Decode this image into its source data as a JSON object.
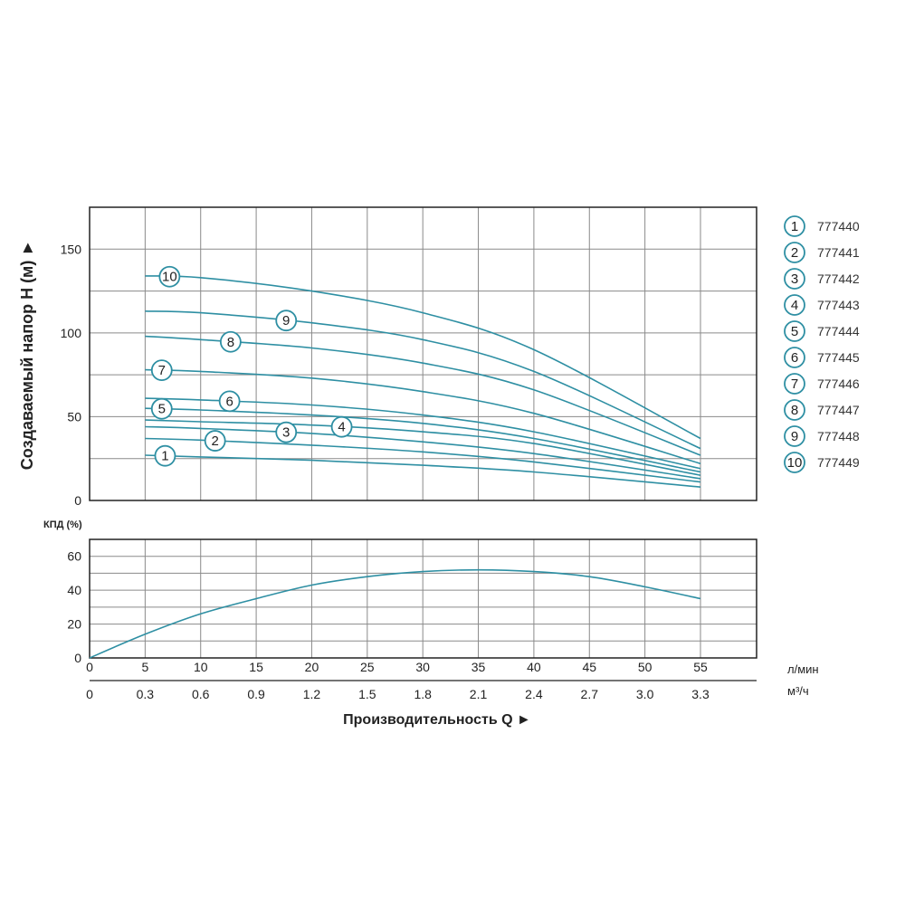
{
  "chart_data": [
    {
      "type": "line",
      "ylabel": "Создаваемый напор H (м) ►",
      "ylim": [
        0,
        175
      ],
      "yticks": [
        0,
        50,
        100,
        150
      ],
      "xlim": [
        0,
        60
      ],
      "grid": true,
      "legend_position": "right",
      "series": [
        {
          "marker": "1",
          "name": "777440",
          "x": [
            5,
            10,
            20,
            30,
            40,
            55
          ],
          "y": [
            27,
            26,
            24,
            21,
            17,
            8
          ]
        },
        {
          "marker": "2",
          "name": "777441",
          "x": [
            5,
            10,
            20,
            30,
            40,
            55
          ],
          "y": [
            37,
            36,
            33,
            29,
            23,
            11
          ]
        },
        {
          "marker": "3",
          "name": "777442",
          "x": [
            5,
            10,
            20,
            30,
            40,
            55
          ],
          "y": [
            44,
            43,
            40,
            35,
            28,
            13
          ]
        },
        {
          "marker": "4",
          "name": "777443",
          "x": [
            5,
            10,
            20,
            30,
            40,
            55
          ],
          "y": [
            48,
            47,
            45,
            41,
            34,
            15
          ]
        },
        {
          "marker": "5",
          "name": "777444",
          "x": [
            5,
            10,
            20,
            30,
            40,
            55
          ],
          "y": [
            55,
            54,
            51,
            46,
            37,
            17
          ]
        },
        {
          "marker": "6",
          "name": "777445",
          "x": [
            5,
            10,
            20,
            30,
            40,
            55
          ],
          "y": [
            61,
            60,
            57,
            51,
            41,
            19
          ]
        },
        {
          "marker": "7",
          "name": "777446",
          "x": [
            5,
            10,
            20,
            30,
            40,
            55
          ],
          "y": [
            78,
            77,
            73,
            65,
            52,
            22
          ]
        },
        {
          "marker": "8",
          "name": "777447",
          "x": [
            5,
            10,
            20,
            30,
            40,
            55
          ],
          "y": [
            98,
            96,
            91,
            82,
            66,
            27
          ]
        },
        {
          "marker": "9",
          "name": "777448",
          "x": [
            5,
            10,
            20,
            30,
            40,
            55
          ],
          "y": [
            113,
            112,
            106,
            96,
            77,
            31
          ]
        },
        {
          "marker": "10",
          "name": "777449",
          "x": [
            5,
            10,
            20,
            30,
            40,
            55
          ],
          "y": [
            134,
            133,
            125,
            112,
            90,
            37
          ]
        }
      ]
    },
    {
      "type": "line",
      "ylabel": "КПД (%)",
      "ylim": [
        0,
        70
      ],
      "yticks": [
        0,
        20,
        40,
        60
      ],
      "xlim": [
        0,
        60
      ],
      "xticks_flow": [
        0,
        5,
        10,
        15,
        20,
        25,
        30,
        35,
        40,
        45,
        50,
        55
      ],
      "xticks_m3h": [
        "0",
        "0.3",
        "0.6",
        "0.9",
        "1.2",
        "1.5",
        "1.8",
        "2.1",
        "2.4",
        "2.7",
        "3.0",
        "3.3"
      ],
      "xunit_flow": "л/мин",
      "xunit_m3h": "м³/ч",
      "xlabel": "Производительность Q ►",
      "grid": true,
      "series": [
        {
          "x": [
            0,
            5,
            10,
            15,
            20,
            25,
            30,
            35,
            40,
            45,
            50,
            55
          ],
          "y": [
            0,
            14,
            26,
            35,
            43,
            48,
            51,
            52,
            51,
            48,
            42,
            35
          ]
        }
      ]
    }
  ],
  "colors": {
    "curve": "#2e8fa3",
    "grid": "#8a8a8a",
    "axis": "#222222",
    "marker_stroke": "#2e8fa3"
  }
}
